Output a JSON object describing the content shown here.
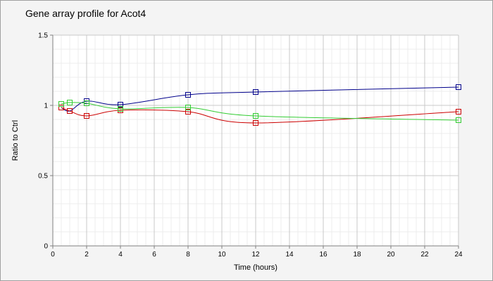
{
  "chart_data": {
    "type": "line",
    "title": "Gene array profile for Acot4",
    "xlabel": "Time (hours)",
    "ylabel": "Ratio to Ctrl",
    "xlim": [
      0,
      24
    ],
    "ylim": [
      0,
      1.5
    ],
    "x_ticks": [
      "0",
      "2",
      "4",
      "6",
      "8",
      "10",
      "12",
      "14",
      "16",
      "18",
      "20",
      "22",
      "24"
    ],
    "y_ticks": [
      "0",
      "0.5",
      "1",
      "1.5"
    ],
    "grid": true,
    "legend": "none",
    "series": [
      {
        "color": "#00008b",
        "x": [
          0.5,
          1,
          2,
          4,
          8,
          12,
          24
        ],
        "values": [
          0.985,
          0.96,
          1.03,
          1.005,
          1.075,
          1.095,
          1.13
        ]
      },
      {
        "color": "#cc0000",
        "x": [
          0.5,
          1,
          2,
          4,
          8,
          12,
          24
        ],
        "values": [
          0.985,
          0.96,
          0.925,
          0.965,
          0.955,
          0.875,
          0.955
        ]
      },
      {
        "color": "#33cc33",
        "x": [
          0.5,
          1,
          2,
          4,
          8,
          12,
          24
        ],
        "values": [
          1.01,
          1.02,
          1.015,
          0.975,
          0.985,
          0.925,
          0.895
        ]
      }
    ]
  },
  "colors": {
    "plot_background": "#ffffff",
    "panel_background": "#f4f4f4",
    "major_grid": "#c8c8c8",
    "minor_grid": "#ececec",
    "axis": "#808080"
  }
}
